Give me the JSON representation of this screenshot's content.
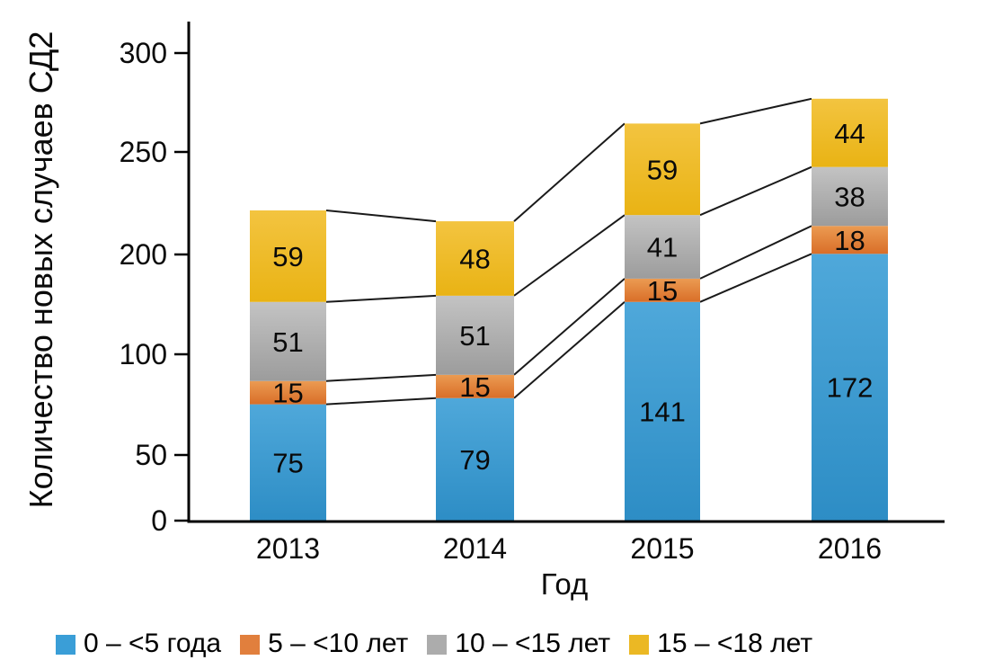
{
  "chart_data": {
    "type": "bar",
    "stacked": true,
    "title": "",
    "xlabel": "Год",
    "ylabel": "Количество новых случаев СД2",
    "categories": [
      "2013",
      "2014",
      "2015",
      "2016"
    ],
    "series": [
      {
        "name": "0 – <5 года",
        "values": [
          75,
          79,
          141,
          172
        ],
        "color": "#3A9ED7",
        "gradient_top": "#4FA8DA",
        "gradient_bottom": "#2D8DC5"
      },
      {
        "name": "5 – <10 лет",
        "values": [
          15,
          15,
          15,
          18
        ],
        "color": "#E17F3D",
        "gradient_top": "#EB9B52",
        "gradient_bottom": "#D96E28"
      },
      {
        "name": "10 – <15 лет",
        "values": [
          51,
          51,
          41,
          38
        ],
        "color": "#ACACAC",
        "gradient_top": "#C3C3C3",
        "gradient_bottom": "#9C9C9C"
      },
      {
        "name": "15 – <18 лет",
        "values": [
          59,
          48,
          59,
          44
        ],
        "color": "#EBB824",
        "gradient_top": "#F3C440",
        "gradient_bottom": "#E9B314"
      }
    ],
    "y_axis": {
      "tick_labels": [
        "0",
        "50",
        "100",
        "200",
        "250",
        "300"
      ],
      "range": [
        0,
        300
      ]
    },
    "segment_value_labels": true,
    "connector_lines": true,
    "legend_position": "bottom",
    "grid": false,
    "background": "#ffffff",
    "text_color": "#0a0a0a",
    "line_color": "#1a1a1a"
  }
}
